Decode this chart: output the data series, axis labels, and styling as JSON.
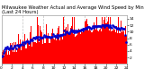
{
  "title1": "Milwaukee Weather Actual and Average Wind Speed by Minute mph",
  "title2": "(Last 24 Hours)",
  "n_points": 1440,
  "bar_color": "#ff0000",
  "dot_color": "#0000cd",
  "background_color": "#ffffff",
  "plot_bg_color": "#ffffff",
  "grid_color": "#c0c0c0",
  "ylim": [
    0,
    15
  ],
  "yticks": [
    2,
    4,
    6,
    8,
    10,
    12,
    14
  ],
  "title_fontsize": 3.8,
  "tick_fontsize": 3.2,
  "n_gridlines": 5,
  "seed": 7
}
